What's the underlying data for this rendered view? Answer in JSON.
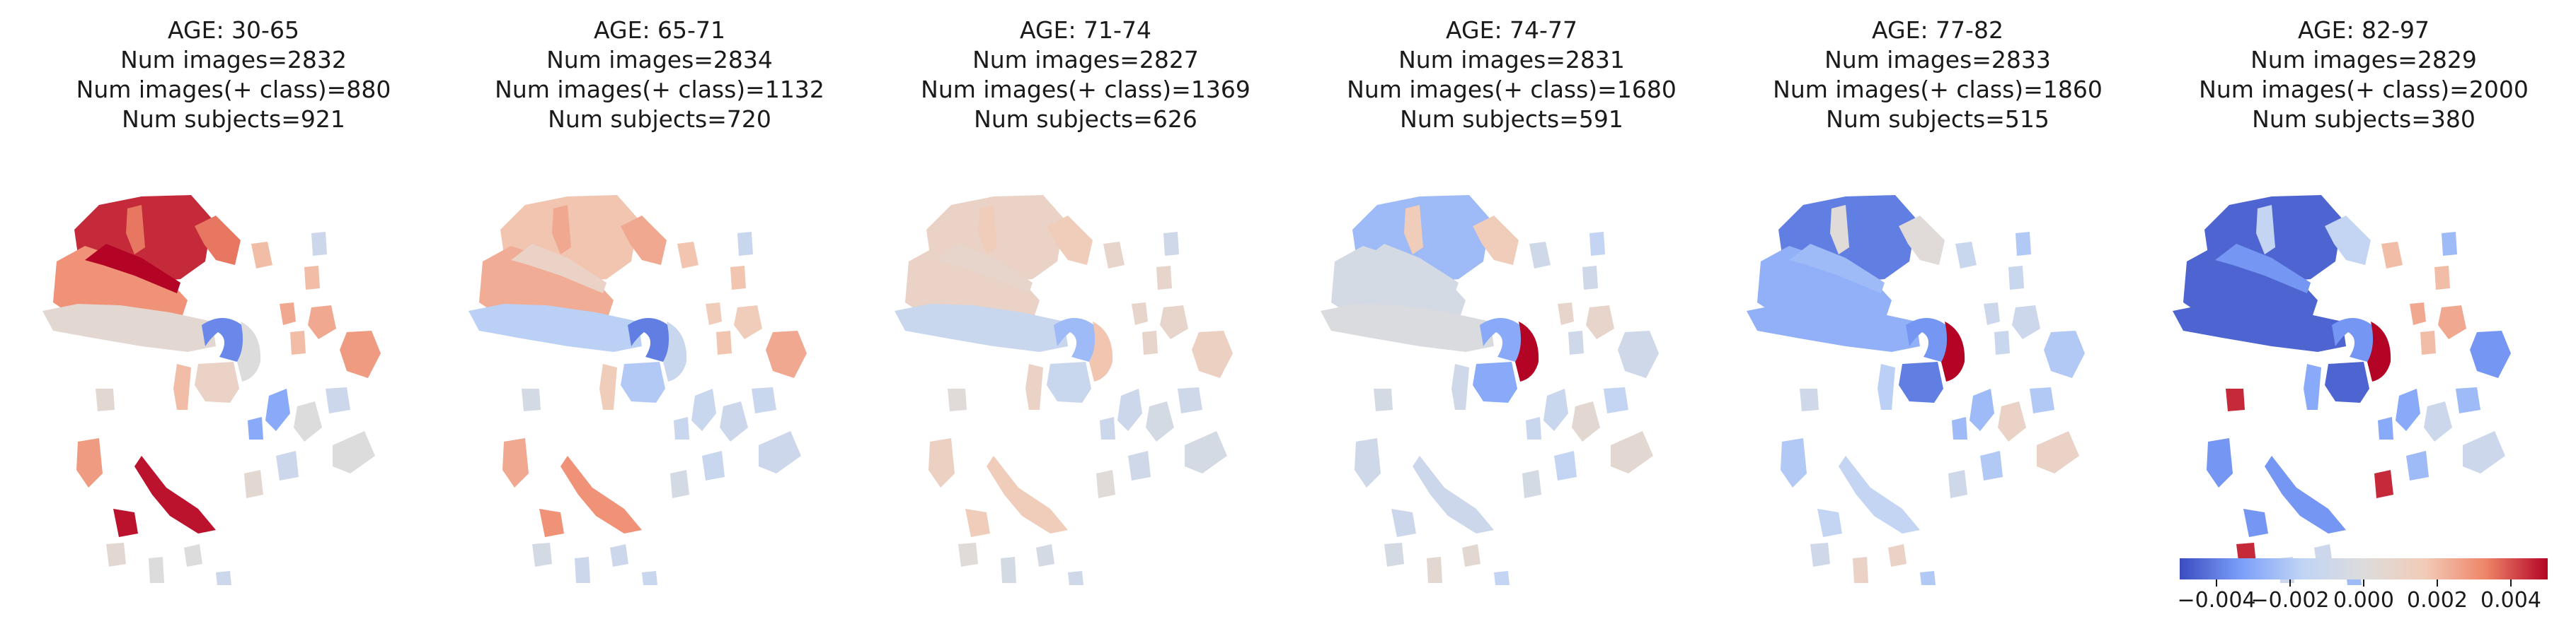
{
  "panels": [
    {
      "age": "AGE: 30-65",
      "num_images": "Num images=2832",
      "num_pos": "Num images(+ class)=880",
      "num_subjects": "Num subjects=921",
      "values": {
        "frontal_upper": 0.0045,
        "frontal_lower": 0.003,
        "frontal_vessel": 0.0052,
        "temporal": 0.0005,
        "insula": 0.0035,
        "ventricle": -0.0038,
        "thalamus": 0.001,
        "caudate": 0.0,
        "hippocampus": 0.002,
        "cortex_patch": 0.0025,
        "posterior": -0.003,
        "occipital": 0.0028,
        "cerebellum": 0.0048,
        "scatter_a": 0.002,
        "scatter_b": -0.001,
        "scatter_c": 0.0,
        "scatter_d": 0.0005
      }
    },
    {
      "age": "AGE: 65-71",
      "num_images": "Num images=2834",
      "num_pos": "Num images(+ class)=1132",
      "num_subjects": "Num subjects=720",
      "values": {
        "frontal_upper": 0.0018,
        "frontal_lower": 0.0024,
        "frontal_vessel": 0.001,
        "temporal": -0.0018,
        "insula": 0.0025,
        "ventricle": -0.004,
        "thalamus": -0.002,
        "caudate": -0.0012,
        "hippocampus": 0.0015,
        "cortex_patch": 0.0015,
        "posterior": -0.0012,
        "occipital": 0.0025,
        "cerebellum": 0.003,
        "scatter_a": 0.0018,
        "scatter_b": -0.0012,
        "scatter_c": -0.001,
        "scatter_d": -0.0005
      }
    },
    {
      "age": "AGE: 71-74",
      "num_images": "Num images=2827",
      "num_pos": "Num images(+ class)=1369",
      "num_subjects": "Num subjects=626",
      "values": {
        "frontal_upper": 0.001,
        "frontal_lower": 0.001,
        "frontal_vessel": 0.0008,
        "temporal": -0.0012,
        "insula": 0.0015,
        "ventricle": -0.0025,
        "thalamus": -0.0012,
        "caudate": 0.0018,
        "hippocampus": 0.001,
        "cortex_patch": 0.0008,
        "posterior": -0.001,
        "occipital": 0.0012,
        "cerebellum": 0.0015,
        "scatter_a": 0.0008,
        "scatter_b": -0.0008,
        "scatter_c": -0.0005,
        "scatter_d": 0.0002
      }
    },
    {
      "age": "AGE: 74-77",
      "num_images": "Num images=2831",
      "num_pos": "Num images(+ class)=1680",
      "num_subjects": "Num subjects=591",
      "values": {
        "frontal_upper": -0.0025,
        "frontal_lower": -0.0005,
        "frontal_vessel": -0.0005,
        "temporal": -0.0002,
        "insula": 0.0015,
        "ventricle": -0.003,
        "thalamus": -0.003,
        "caudate": 0.0052,
        "hippocampus": -0.0008,
        "cortex_patch": 0.0008,
        "posterior": -0.0012,
        "occipital": -0.0008,
        "cerebellum": -0.001,
        "scatter_a": -0.0008,
        "scatter_b": -0.0015,
        "scatter_c": 0.0005,
        "scatter_d": -0.0005
      }
    },
    {
      "age": "AGE: 77-82",
      "num_images": "Num images=2833",
      "num_pos": "Num images(+ class)=1860",
      "num_subjects": "Num subjects=515",
      "values": {
        "frontal_upper": -0.004,
        "frontal_lower": -0.0028,
        "frontal_vessel": -0.0025,
        "temporal": -0.0028,
        "insula": 0.0002,
        "ventricle": -0.0035,
        "thalamus": -0.004,
        "caudate": 0.0052,
        "hippocampus": -0.0018,
        "cortex_patch": -0.001,
        "posterior": -0.0025,
        "occipital": -0.002,
        "cerebellum": -0.0015,
        "scatter_a": -0.0012,
        "scatter_b": -0.002,
        "scatter_c": 0.001,
        "scatter_d": -0.0008
      }
    },
    {
      "age": "AGE: 82-97",
      "num_images": "Num images=2829",
      "num_pos": "Num images(+ class)=2000",
      "num_subjects": "Num subjects=380",
      "values": {
        "frontal_upper": -0.0045,
        "frontal_lower": -0.0045,
        "frontal_vessel": -0.0035,
        "temporal": -0.0045,
        "insula": -0.0015,
        "ventricle": -0.0035,
        "thalamus": -0.0045,
        "caudate": 0.0052,
        "hippocampus": -0.003,
        "cortex_patch": 0.0025,
        "posterior": -0.003,
        "occipital": -0.0035,
        "cerebellum": -0.0035,
        "scatter_a": 0.002,
        "scatter_b": -0.0025,
        "scatter_c": -0.001,
        "scatter_d": 0.0045
      }
    }
  ],
  "colorbar": {
    "min": -0.005,
    "max": 0.005,
    "ticks": [
      {
        "value": -0.004,
        "label": "−0.004"
      },
      {
        "value": -0.002,
        "label": "−0.002"
      },
      {
        "value": 0.0,
        "label": "0.000"
      },
      {
        "value": 0.002,
        "label": "0.002"
      },
      {
        "value": 0.004,
        "label": "0.004"
      }
    ],
    "colormap": "coolwarm",
    "stops": [
      "#3b4cc0",
      "#7b9ff9",
      "#c0d4f5",
      "#dddcdc",
      "#f2cbb7",
      "#ee8468",
      "#b40426"
    ]
  }
}
